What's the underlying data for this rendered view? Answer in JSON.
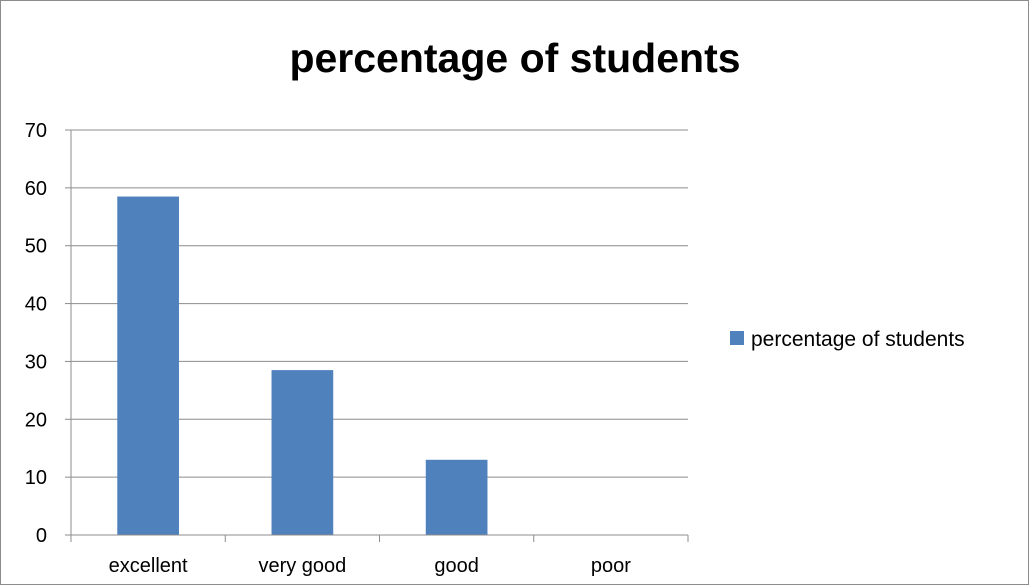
{
  "chart_data": {
    "type": "bar",
    "title": "percentage of students",
    "categories": [
      "excellent",
      "very good",
      "good",
      "poor"
    ],
    "series": [
      {
        "name": "percentage of students",
        "values": [
          58.5,
          28.5,
          13,
          0
        ]
      }
    ],
    "ylim": [
      0,
      70
    ],
    "yticks": [
      "0",
      "10",
      "20",
      "30",
      "40",
      "50",
      "60",
      "70"
    ],
    "ytick_values": [
      0,
      10,
      20,
      30,
      40,
      50,
      60,
      70
    ],
    "grid": true,
    "legend": "right",
    "colors": {
      "bar": "#4f81bd",
      "grid": "#8c8c8c",
      "axis": "#8c8c8c"
    }
  }
}
